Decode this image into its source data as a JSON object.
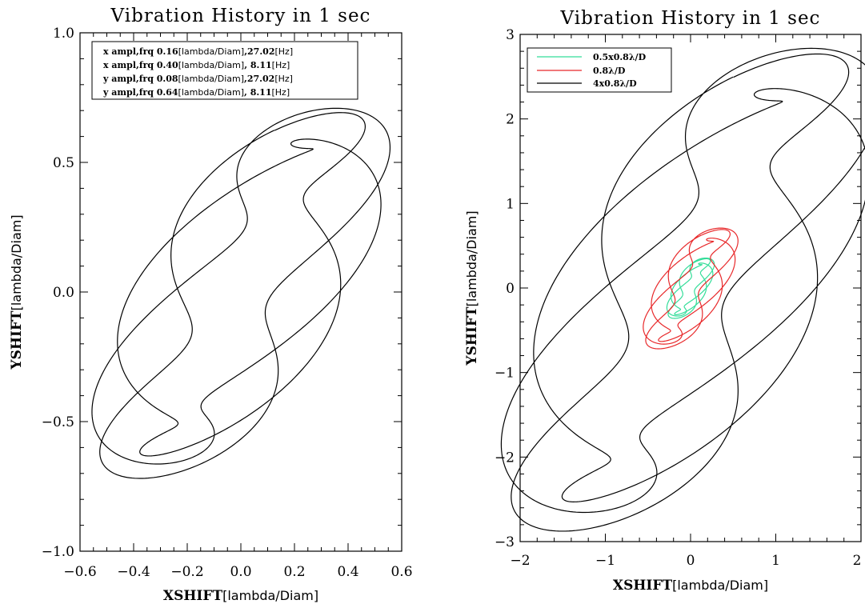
{
  "chart_data": [
    {
      "type": "line",
      "title": "Vibration History in 1 sec",
      "xlabel_bold": "XSHIFT",
      "xlabel_rest": "[lambda/Diam]",
      "ylabel_bold": "YSHIFT",
      "ylabel_rest": "[lambda/Diam]",
      "xlim": [
        -0.6,
        0.6
      ],
      "ylim": [
        -1.0,
        1.0
      ],
      "xticks": [
        -0.6,
        -0.4,
        -0.2,
        0.0,
        0.2,
        0.4,
        0.6
      ],
      "xtick_labels": [
        "−0.6",
        "−0.4",
        "−0.2",
        "0.0",
        "0.2",
        "0.4",
        "0.6"
      ],
      "yticks": [
        -1.0,
        -0.5,
        0.0,
        0.5,
        1.0
      ],
      "ytick_labels": [
        "−1.0",
        "−0.5",
        "0.0",
        "0.5",
        "1.0"
      ],
      "grid": false,
      "legend_position": "top-left",
      "legend": [
        {
          "prefix": "x ampl,frq  0.16",
          "u1": "[lambda/Diam]",
          "mid": ",27.02",
          "u2": "[Hz]"
        },
        {
          "prefix": "x ampl,frq  0.40",
          "u1": "[lambda/Diam]",
          "mid": ", 8.11",
          "u2": "[Hz]"
        },
        {
          "prefix": "y ampl,frq  0.08",
          "u1": "[lambda/Diam]",
          "mid": ",27.02",
          "u2": "[Hz]"
        },
        {
          "prefix": "y ampl,frq  0.64",
          "u1": "[lambda/Diam]",
          "mid": ", 8.11",
          "u2": "[Hz]"
        }
      ],
      "series": [
        {
          "color": "#000000",
          "scale": 1.0
        }
      ]
    },
    {
      "type": "line",
      "title": "Vibration History in 1 sec",
      "xlabel_bold": "XSHIFT",
      "xlabel_rest": "[lambda/Diam]",
      "ylabel_bold": "YSHIFT",
      "ylabel_rest": "[lambda/Diam]",
      "xlim": [
        -2,
        2
      ],
      "ylim": [
        -3,
        3
      ],
      "xticks": [
        -2,
        -1,
        0,
        1,
        2
      ],
      "xtick_labels": [
        "−2",
        "−1",
        "0",
        "1",
        "2"
      ],
      "yticks": [
        -3,
        -2,
        -1,
        0,
        1,
        2,
        3
      ],
      "ytick_labels": [
        "−3",
        "−2",
        "−1",
        "0",
        "1",
        "2",
        "3"
      ],
      "grid": false,
      "legend_position": "top-left",
      "legend": [
        {
          "label": "0.5x0.8λ/D",
          "color": "#33dd99"
        },
        {
          "label": "0.8λ/D",
          "color": "#e8282a"
        },
        {
          "label": "4x0.8λ/D",
          "color": "#000000"
        }
      ],
      "series": [
        {
          "name": "0.5x0.8λ/D",
          "color": "#33dd99",
          "scale": 0.5
        },
        {
          "name": "0.8λ/D",
          "color": "#e8282a",
          "scale": 1.0
        },
        {
          "name": "4x0.8λ/D",
          "color": "#000000",
          "scale": 4.0
        }
      ]
    }
  ]
}
